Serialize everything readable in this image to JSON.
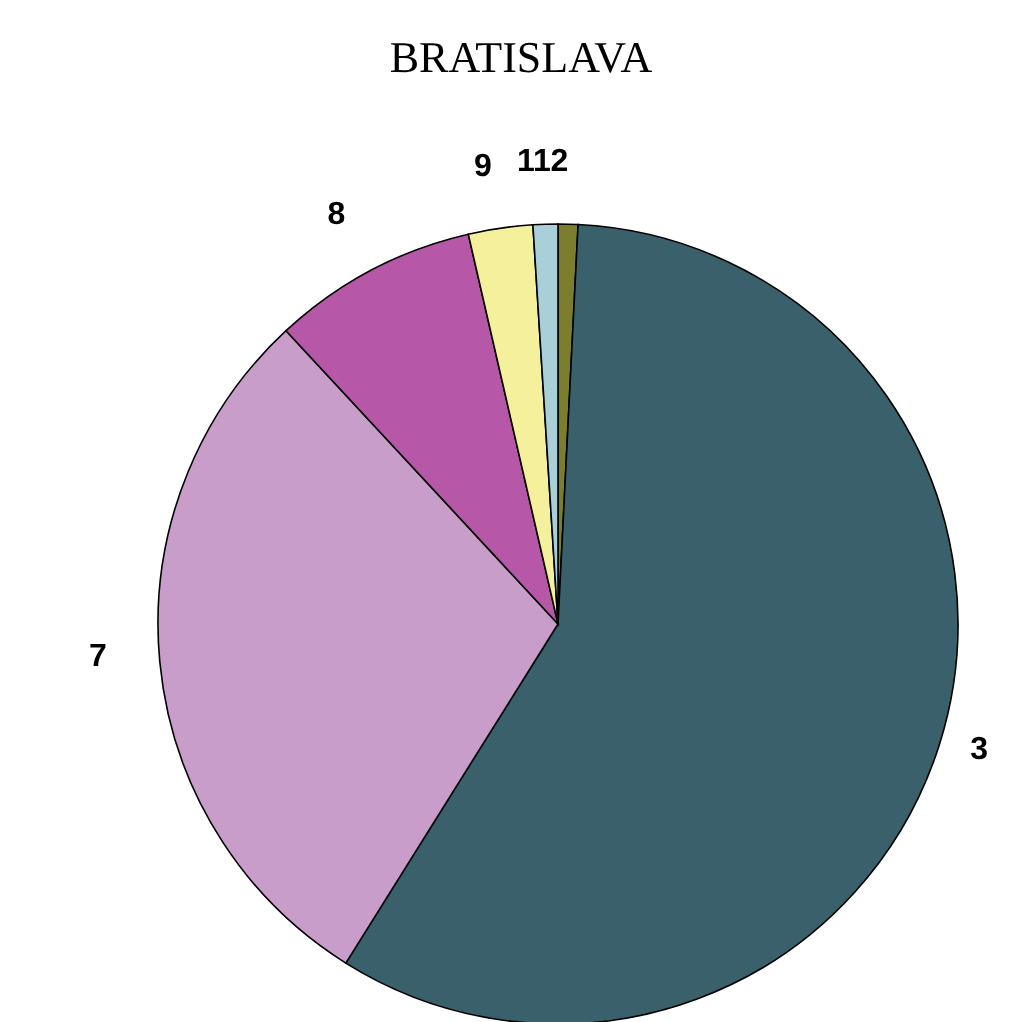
{
  "chart_data": {
    "type": "pie",
    "title": "BRATISLAVA",
    "categories": [
      "2",
      "3",
      "7",
      "8",
      "9",
      "11"
    ],
    "values": [
      0.8,
      58.1,
      29.2,
      8.3,
      2.6,
      1.0
    ],
    "colors": [
      "#7d7d2e",
      "#3a616b",
      "#c89dc9",
      "#b658a7",
      "#f4f09b",
      "#a9cfd8"
    ]
  }
}
